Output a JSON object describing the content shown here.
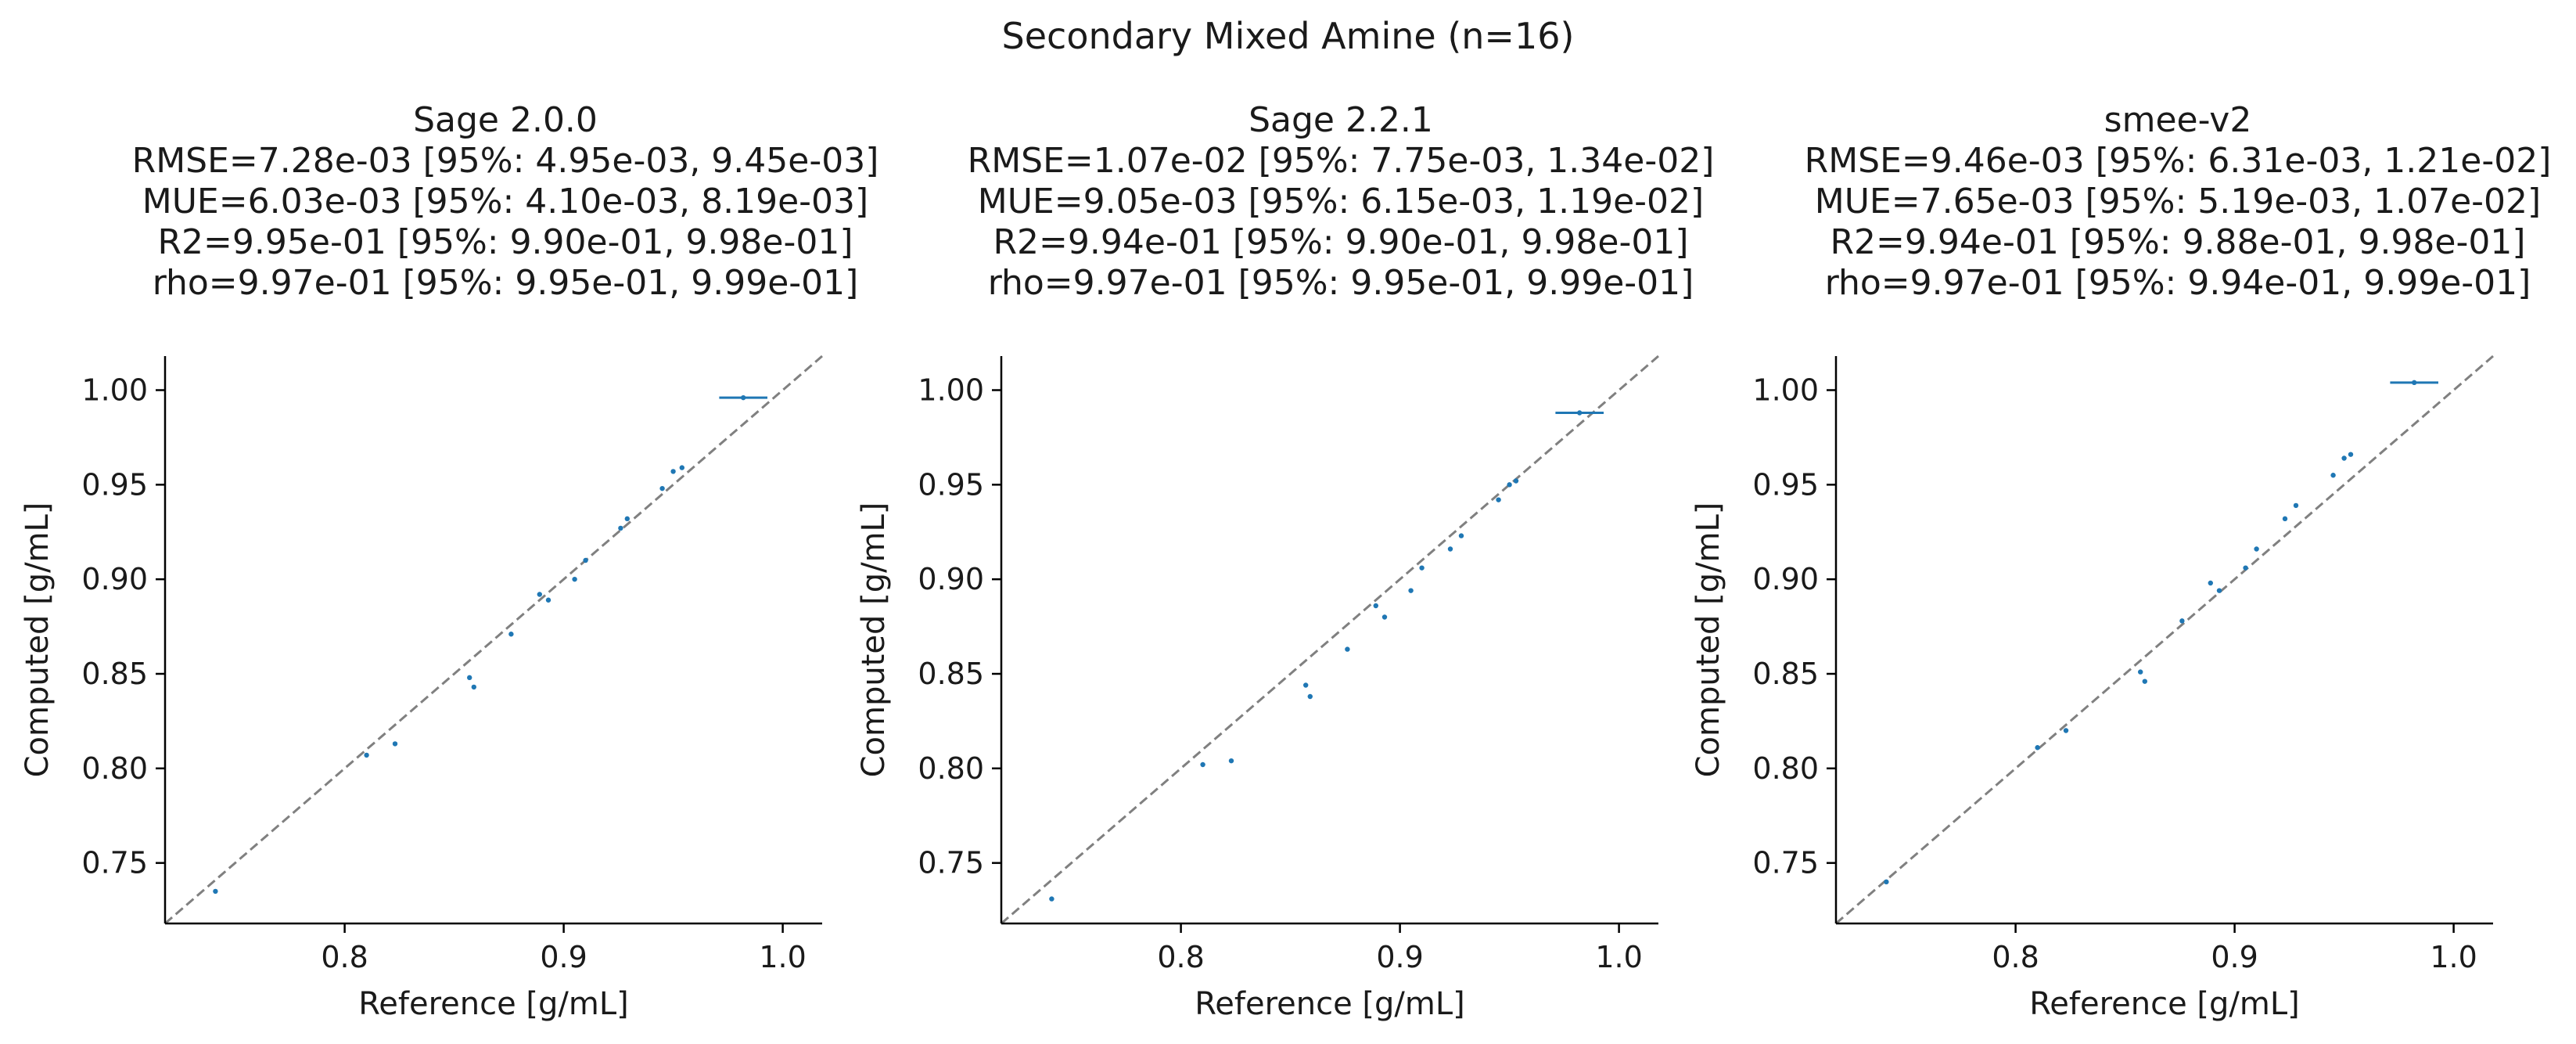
{
  "chart_data": {
    "title": "Secondary Mixed Amine (n=16)",
    "type": "scatter",
    "xlim": [
      0.718,
      1.018
    ],
    "ylim": [
      0.718,
      1.018
    ],
    "grid": false,
    "diagonal_line": {
      "style": "dashed",
      "color": "#808080"
    },
    "point_color": "#1f77b4",
    "x_ticks": [
      0.8,
      0.9,
      1.0
    ],
    "x_tick_labels": [
      "0.8",
      "0.9",
      "1.0"
    ],
    "y_ticks": [
      0.75,
      0.8,
      0.85,
      0.9,
      0.95,
      1.0
    ],
    "y_tick_labels": [
      "0.75",
      "0.80",
      "0.85",
      "0.90",
      "0.95",
      "1.00"
    ],
    "panels": [
      {
        "title": "Sage 2.0.0",
        "stats": [
          "RMSE=7.28e-03 [95%: 4.95e-03, 9.45e-03]",
          "MUE=6.03e-03 [95%: 4.10e-03, 8.19e-03]",
          "R2=9.95e-01 [95%: 9.90e-01, 9.98e-01]",
          "rho=9.97e-01 [95%: 9.95e-01, 9.99e-01]"
        ],
        "xlabel": "Reference [g/mL]",
        "ylabel": "Computed [g/mL]",
        "points": [
          {
            "x": 0.741,
            "y": 0.735
          },
          {
            "x": 0.81,
            "y": 0.807
          },
          {
            "x": 0.823,
            "y": 0.813
          },
          {
            "x": 0.857,
            "y": 0.848
          },
          {
            "x": 0.859,
            "y": 0.843
          },
          {
            "x": 0.876,
            "y": 0.871
          },
          {
            "x": 0.889,
            "y": 0.892
          },
          {
            "x": 0.893,
            "y": 0.889
          },
          {
            "x": 0.905,
            "y": 0.9
          },
          {
            "x": 0.91,
            "y": 0.91
          },
          {
            "x": 0.926,
            "y": 0.927
          },
          {
            "x": 0.929,
            "y": 0.932
          },
          {
            "x": 0.945,
            "y": 0.948
          },
          {
            "x": 0.95,
            "y": 0.957
          },
          {
            "x": 0.954,
            "y": 0.959
          },
          {
            "x": 0.982,
            "y": 0.996,
            "xerr": 0.011
          }
        ]
      },
      {
        "title": "Sage 2.2.1",
        "stats": [
          "RMSE=1.07e-02 [95%: 7.75e-03, 1.34e-02]",
          "MUE=9.05e-03 [95%: 6.15e-03, 1.19e-02]",
          "R2=9.94e-01 [95%: 9.90e-01, 9.98e-01]",
          "rho=9.97e-01 [95%: 9.95e-01, 9.99e-01]"
        ],
        "xlabel": "Reference [g/mL]",
        "ylabel": "Computed [g/mL]",
        "points": [
          {
            "x": 0.741,
            "y": 0.731
          },
          {
            "x": 0.81,
            "y": 0.802
          },
          {
            "x": 0.823,
            "y": 0.804
          },
          {
            "x": 0.857,
            "y": 0.844
          },
          {
            "x": 0.859,
            "y": 0.838
          },
          {
            "x": 0.876,
            "y": 0.863
          },
          {
            "x": 0.889,
            "y": 0.886
          },
          {
            "x": 0.893,
            "y": 0.88
          },
          {
            "x": 0.905,
            "y": 0.894
          },
          {
            "x": 0.91,
            "y": 0.906
          },
          {
            "x": 0.923,
            "y": 0.916
          },
          {
            "x": 0.928,
            "y": 0.923
          },
          {
            "x": 0.945,
            "y": 0.942
          },
          {
            "x": 0.95,
            "y": 0.95
          },
          {
            "x": 0.953,
            "y": 0.952
          },
          {
            "x": 0.982,
            "y": 0.988,
            "xerr": 0.011
          }
        ]
      },
      {
        "title": "smee-v2",
        "stats": [
          "RMSE=9.46e-03 [95%: 6.31e-03, 1.21e-02]",
          "MUE=7.65e-03 [95%: 5.19e-03, 1.07e-02]",
          "R2=9.94e-01 [95%: 9.88e-01, 9.98e-01]",
          "rho=9.97e-01 [95%: 9.94e-01, 9.99e-01]"
        ],
        "xlabel": "Reference [g/mL]",
        "ylabel": "Computed [g/mL]",
        "points": [
          {
            "x": 0.741,
            "y": 0.74
          },
          {
            "x": 0.81,
            "y": 0.811
          },
          {
            "x": 0.823,
            "y": 0.82
          },
          {
            "x": 0.857,
            "y": 0.851
          },
          {
            "x": 0.859,
            "y": 0.846
          },
          {
            "x": 0.876,
            "y": 0.878
          },
          {
            "x": 0.889,
            "y": 0.898
          },
          {
            "x": 0.893,
            "y": 0.894
          },
          {
            "x": 0.905,
            "y": 0.906
          },
          {
            "x": 0.91,
            "y": 0.916
          },
          {
            "x": 0.923,
            "y": 0.932
          },
          {
            "x": 0.928,
            "y": 0.939
          },
          {
            "x": 0.945,
            "y": 0.955
          },
          {
            "x": 0.95,
            "y": 0.964
          },
          {
            "x": 0.953,
            "y": 0.966
          },
          {
            "x": 0.982,
            "y": 1.004,
            "xerr": 0.011
          }
        ]
      }
    ]
  }
}
